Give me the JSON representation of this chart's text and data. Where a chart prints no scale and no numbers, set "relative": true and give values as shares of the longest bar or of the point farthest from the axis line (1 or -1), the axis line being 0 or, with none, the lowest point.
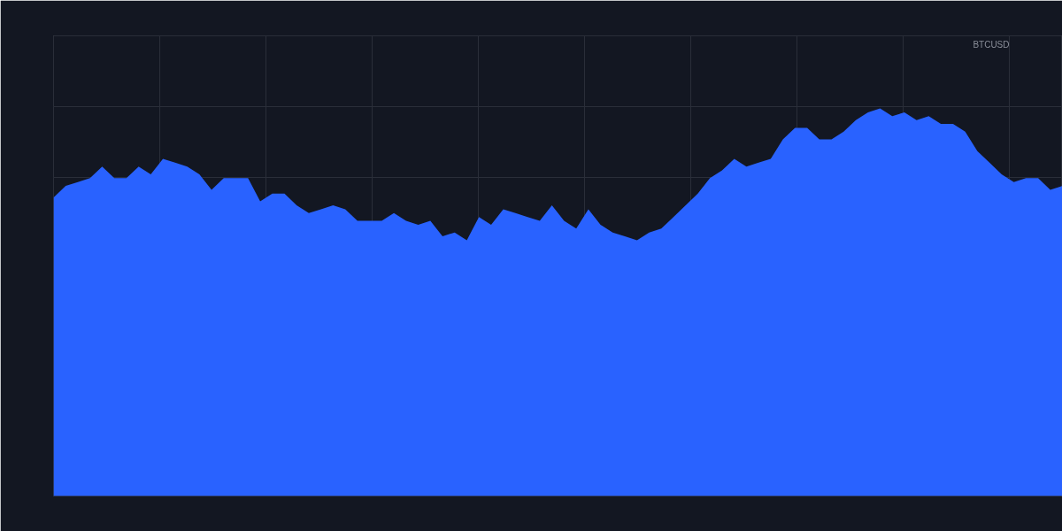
{
  "chart_data": {
    "type": "area",
    "relative": true,
    "grid": true,
    "annotations": [
      "BTCUSD"
    ],
    "categories": [
      null,
      null,
      null,
      null,
      null,
      null,
      null,
      null,
      null,
      null,
      null,
      null,
      null,
      null,
      null,
      null,
      null,
      null,
      null,
      null,
      null,
      null,
      null,
      null,
      null,
      null,
      null,
      null,
      null,
      null,
      null,
      null,
      null,
      null,
      null,
      null,
      null,
      null,
      null,
      null,
      null,
      null,
      null,
      null,
      null,
      null,
      null,
      null,
      null,
      null,
      null,
      null,
      null,
      null,
      null,
      null,
      null,
      null,
      null,
      null,
      null,
      null,
      null,
      null,
      null,
      null,
      null,
      null,
      null,
      null,
      null,
      null,
      null,
      null,
      null,
      null,
      null,
      null,
      null,
      null,
      null,
      null,
      null,
      null
    ],
    "series": [
      {
        "color": "#2962ff",
        "values": [
          0.77,
          0.8,
          0.81,
          0.82,
          0.85,
          0.82,
          0.82,
          0.85,
          0.83,
          0.87,
          0.86,
          0.85,
          0.83,
          0.79,
          0.82,
          0.82,
          0.82,
          0.76,
          0.78,
          0.78,
          0.75,
          0.73,
          0.74,
          0.75,
          0.74,
          0.71,
          0.71,
          0.71,
          0.73,
          0.71,
          0.7,
          0.71,
          0.67,
          0.68,
          0.66,
          0.72,
          0.7,
          0.74,
          0.73,
          0.72,
          0.71,
          0.75,
          0.71,
          0.69,
          0.74,
          0.7,
          0.68,
          0.67,
          0.66,
          0.68,
          0.69,
          0.72,
          0.75,
          0.78,
          0.82,
          0.84,
          0.87,
          0.85,
          0.86,
          0.87,
          0.92,
          0.95,
          0.95,
          0.92,
          0.92,
          0.94,
          0.97,
          0.99,
          1,
          0.98,
          0.99,
          0.97,
          0.98,
          0.96,
          0.96,
          0.94,
          0.89,
          0.86,
          0.83,
          0.81,
          0.82,
          0.82,
          0.79,
          0.8
        ]
      }
    ]
  }
}
